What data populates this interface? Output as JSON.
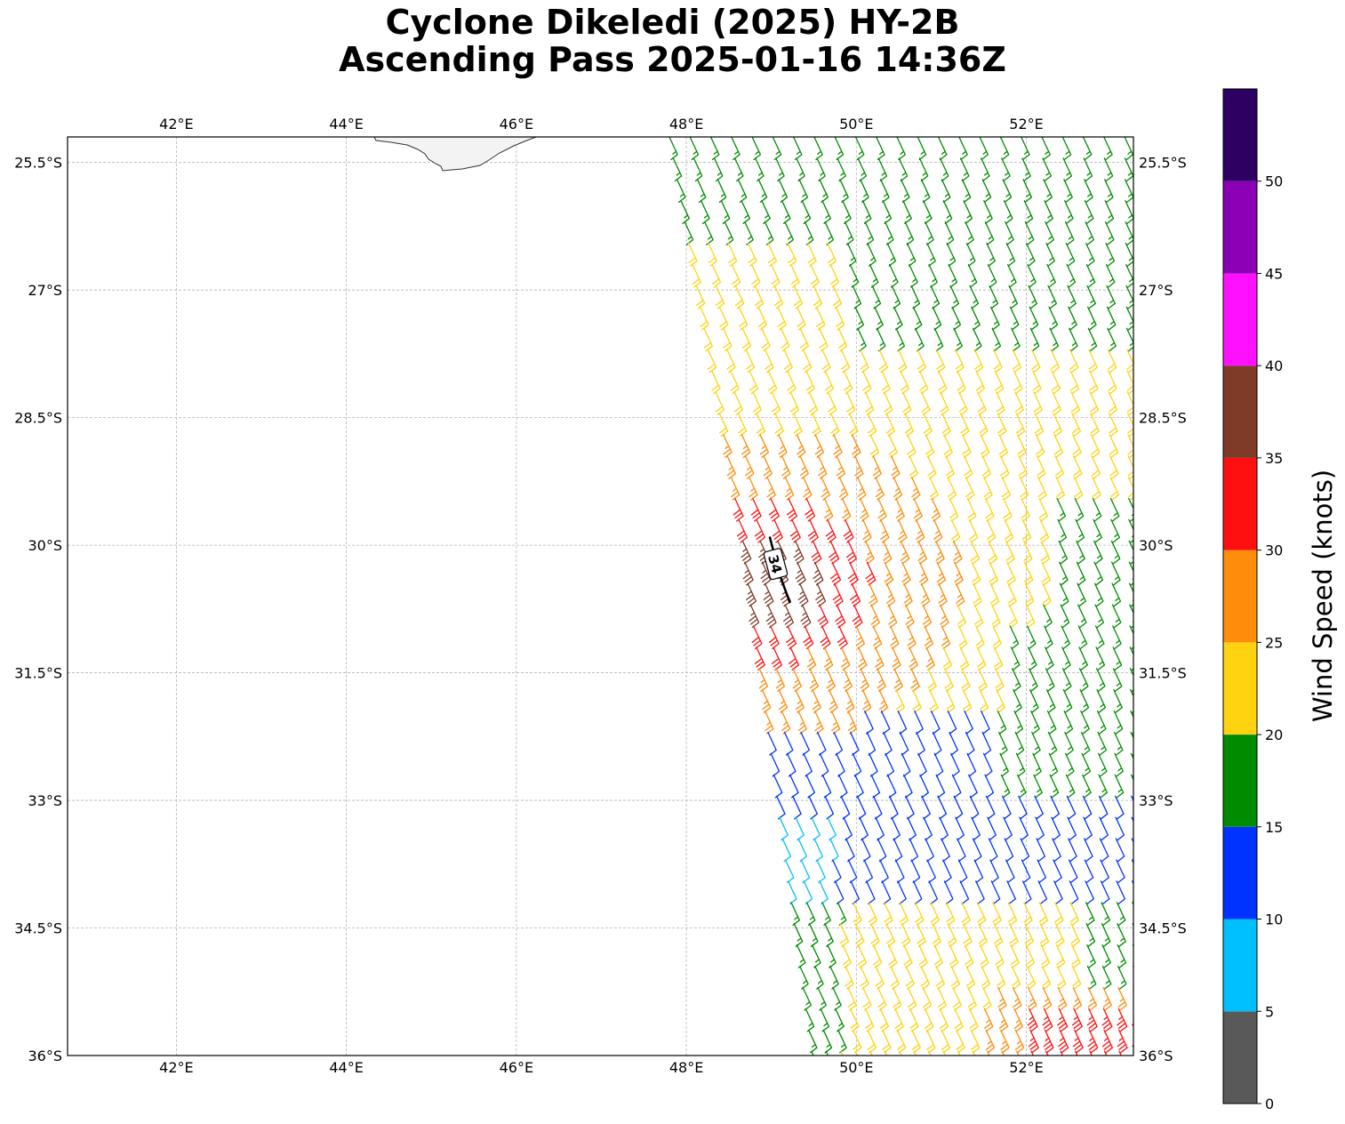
{
  "title": {
    "line1": "Cyclone Dikeledi (2025) HY-2B",
    "line2": "Ascending Pass 2025-01-16 14:36Z"
  },
  "map": {
    "extent": {
      "lon_min": 40.72,
      "lon_max": 53.26,
      "lat_min": -36.0,
      "lat_max": -25.2
    },
    "gridlines": true,
    "lon_ticks": [
      {
        "value": 42,
        "label": "42°E"
      },
      {
        "value": 44,
        "label": "44°E"
      },
      {
        "value": 46,
        "label": "46°E"
      },
      {
        "value": 48,
        "label": "48°E"
      },
      {
        "value": 50,
        "label": "50°E"
      },
      {
        "value": 52,
        "label": "52°E"
      }
    ],
    "lat_ticks": [
      {
        "value": -25.5,
        "label": "25.5°S"
      },
      {
        "value": -27,
        "label": "27°S"
      },
      {
        "value": -28.5,
        "label": "28.5°S"
      },
      {
        "value": -30,
        "label": "30°S"
      },
      {
        "value": -31.5,
        "label": "31.5°S"
      },
      {
        "value": -33,
        "label": "33°S"
      },
      {
        "value": -34.5,
        "label": "34.5°S"
      },
      {
        "value": -36,
        "label": "36°S"
      }
    ],
    "landmass": "Madagascar southern tip (top edge, ~44.3°E–46.2°E)",
    "contour_label": "34",
    "contour_line": [
      [
        48.98,
        -29.9
      ],
      [
        49.1,
        -30.35
      ],
      [
        49.22,
        -30.68
      ]
    ]
  },
  "colorbar": {
    "title": "Wind Speed (knots)",
    "bins": [
      {
        "min": 0,
        "max": 5,
        "color": "#595959"
      },
      {
        "min": 5,
        "max": 10,
        "color": "#00bfff"
      },
      {
        "min": 10,
        "max": 15,
        "color": "#0033ff"
      },
      {
        "min": 15,
        "max": 20,
        "color": "#008c00"
      },
      {
        "min": 20,
        "max": 25,
        "color": "#ffd30f"
      },
      {
        "min": 25,
        "max": 30,
        "color": "#ff8c0a"
      },
      {
        "min": 30,
        "max": 35,
        "color": "#ff1010"
      },
      {
        "min": 35,
        "max": 40,
        "color": "#7f3b28"
      },
      {
        "min": 40,
        "max": 45,
        "color": "#ff10ff"
      },
      {
        "min": 45,
        "max": 50,
        "color": "#8c00b5"
      },
      {
        "min": 50,
        "max": 55,
        "color": "#2e0061"
      }
    ],
    "tick_labels": [
      "0",
      "5",
      "10",
      "15",
      "20",
      "25",
      "30",
      "35",
      "40",
      "45",
      "50"
    ]
  },
  "swath": {
    "description": "HY-2B scatterometer wind barbs",
    "wind_direction_deg_from": 155,
    "wind_regions": [
      {
        "lat_max": -25.2,
        "lat_min": -27.7,
        "speed_kt": 17
      },
      {
        "note": "core near 49.0°E 30.3°S",
        "speed_kt_max": 36
      }
    ]
  }
}
